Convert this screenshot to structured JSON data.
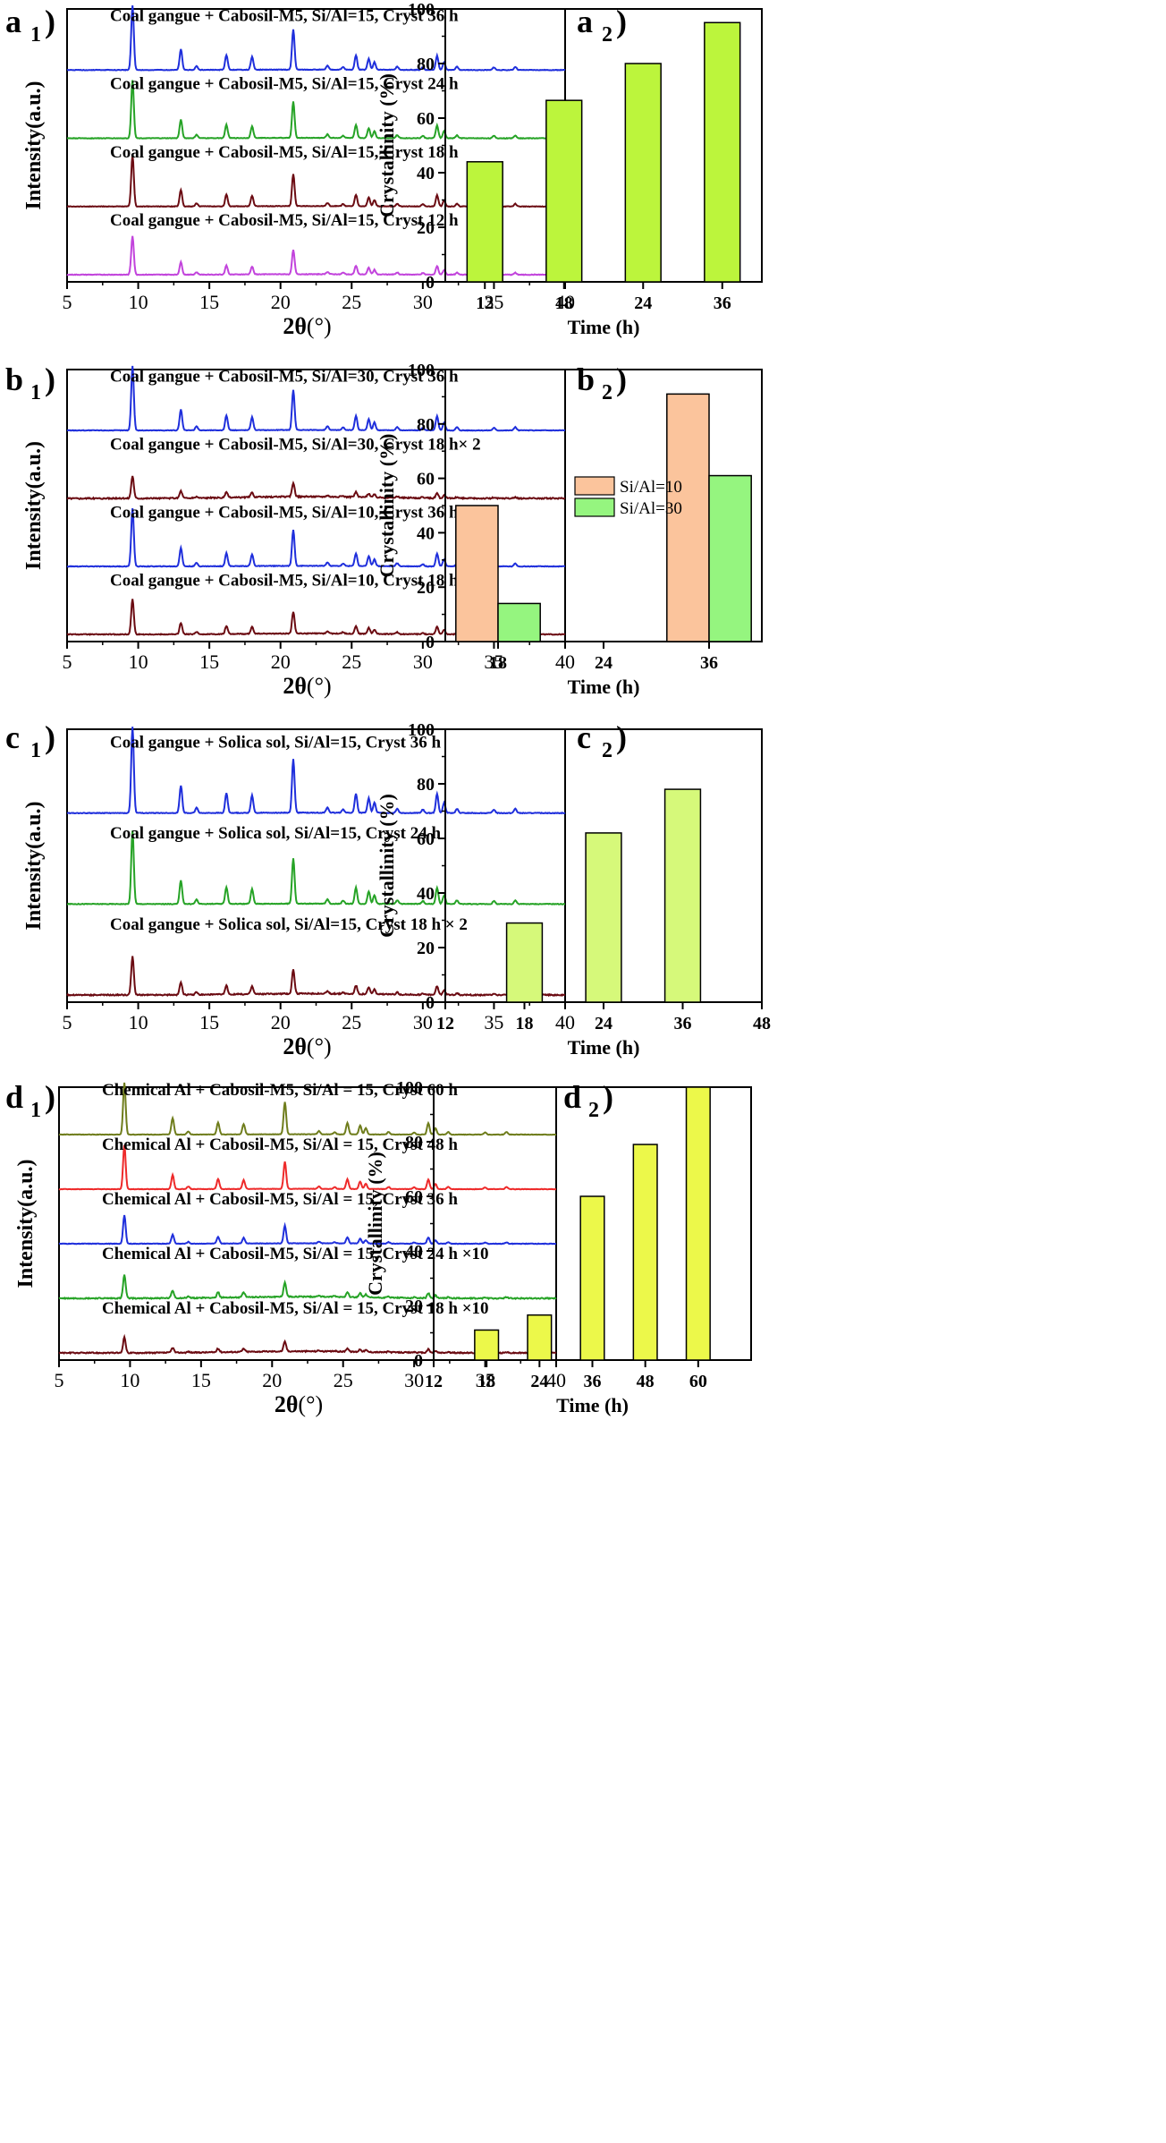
{
  "chart_data": [
    {
      "panel": "a1",
      "type": "line",
      "panel_label": "a",
      "panel_sub": "1",
      "xlabel_main": "2θ",
      "xlabel_unit": "(°)",
      "ylabel": "Intensity(a.u.)",
      "xlim": [
        5,
        40
      ],
      "xticks": [
        5,
        10,
        15,
        20,
        25,
        30,
        35,
        40
      ],
      "series": [
        {
          "name": "Coal gangue + Cabosil-M5, Si/Al=15, Cryst 36 h",
          "color": "#1f2fdc",
          "scale": 1.0,
          "noise": 0.15
        },
        {
          "name": "Coal gangue + Cabosil-M5, Si/Al=15, Cryst 24 h",
          "color": "#26a326",
          "scale": 0.9,
          "noise": 0.15
        },
        {
          "name": "Coal gangue + Cabosil-M5, Si/Al=15, Cryst 18 h",
          "color": "#6b0b12",
          "scale": 0.8,
          "noise": 0.15
        },
        {
          "name": "Coal gangue + Cabosil-M5, Si/Al=15, Cryst 12 h",
          "color": "#c244dc",
          "scale": 0.6,
          "noise": 0.2
        }
      ]
    },
    {
      "panel": "a2",
      "type": "bar",
      "panel_label": "a",
      "panel_sub": "2",
      "xlabel": "Time (h)",
      "ylabel": "Crystallinity (%)",
      "ylim": [
        0,
        100
      ],
      "yticks": [
        0,
        20,
        40,
        60,
        80,
        100
      ],
      "categories": [
        "12",
        "18",
        "24",
        "36"
      ],
      "series": [
        {
          "values": [
            44,
            66.5,
            80,
            95
          ],
          "color": "#bcf53c"
        }
      ]
    },
    {
      "panel": "b1",
      "type": "line",
      "panel_label": "b",
      "panel_sub": "1",
      "xlabel_main": "2θ",
      "xlabel_unit": "(°)",
      "ylabel": "Intensity(a.u.)",
      "xlim": [
        5,
        40
      ],
      "xticks": [
        5,
        10,
        15,
        20,
        25,
        30,
        35,
        40
      ],
      "series": [
        {
          "name": "Coal gangue + Cabosil-M5, Si/Al=30, Cryst 36 h",
          "color": "#1f2fdc",
          "scale": 1.0,
          "noise": 0.15
        },
        {
          "name": "Coal gangue + Cabosil-M5, Si/Al=30, Cryst 18 h× 2",
          "color": "#6b0b12",
          "scale": 0.35,
          "noise": 0.7
        },
        {
          "name": "Coal gangue + Cabosil-M5, Si/Al=10, Cryst 36 h",
          "color": "#1f2fdc",
          "scale": 0.9,
          "noise": 0.2
        },
        {
          "name": "Coal gangue + Cabosil-M5, Si/Al=10, Cryst 18 h",
          "color": "#6b0b12",
          "scale": 0.55,
          "noise": 0.35
        }
      ]
    },
    {
      "panel": "b2",
      "type": "bar",
      "panel_label": "b",
      "panel_sub": "2",
      "xlabel": "Time (h)",
      "ylabel": "Crystallinity (%)",
      "ylim": [
        0,
        100
      ],
      "yticks": [
        0,
        20,
        40,
        60,
        80,
        100
      ],
      "categories": [
        "18",
        "24",
        "36"
      ],
      "legend_position": "center",
      "series": [
        {
          "name": "Si/Al=10",
          "values": [
            50,
            null,
            91
          ],
          "color": "#fbc49c"
        },
        {
          "name": "Si/Al=30",
          "values": [
            14,
            null,
            61
          ],
          "color": "#95f57f"
        }
      ]
    },
    {
      "panel": "c1",
      "type": "line",
      "panel_label": "c",
      "panel_sub": "1",
      "xlabel_main": "2θ",
      "xlabel_unit": "(°)",
      "ylabel": "Intensity(a.u.)",
      "xlim": [
        5,
        40
      ],
      "xticks": [
        5,
        10,
        15,
        20,
        25,
        30,
        35,
        40
      ],
      "series": [
        {
          "name": "Coal gangue + Solica sol, Si/Al=15, Cryst 36 h",
          "color": "#1f2fdc",
          "scale": 1.0,
          "noise": 0.1
        },
        {
          "name": "Coal gangue + Solica sol, Si/Al=15, Cryst 24 h",
          "color": "#26a326",
          "scale": 0.85,
          "noise": 0.1
        },
        {
          "name": "Coal gangue + Solica sol, Si/Al=15, Cryst 18 h × 2",
          "color": "#6b0b12",
          "scale": 0.45,
          "noise": 0.4
        }
      ]
    },
    {
      "panel": "c2",
      "type": "bar",
      "panel_label": "c",
      "panel_sub": "2",
      "xlabel": "Time (h)",
      "ylabel": "Crystallinity (%)",
      "ylim": [
        0,
        100
      ],
      "yticks": [
        0,
        20,
        40,
        60,
        80,
        100
      ],
      "xlim": [
        12,
        48
      ],
      "xticks": [
        "12",
        "18",
        "24",
        "36",
        "48"
      ],
      "categories": [
        "18",
        "24",
        "36"
      ],
      "series": [
        {
          "values": [
            29,
            62,
            78
          ],
          "color": "#d6f97a"
        }
      ]
    },
    {
      "panel": "d1",
      "type": "line",
      "panel_label": "d",
      "panel_sub": "1",
      "xlabel_main": "2θ",
      "xlabel_unit": "(°)",
      "ylabel": "Intensity(a.u.)",
      "xlim": [
        5,
        40
      ],
      "xticks": [
        5,
        10,
        15,
        20,
        25,
        30,
        35,
        40
      ],
      "series": [
        {
          "name": "Chemical Al + Cabosil-M5, Si/Al = 15, Cryst 60 h",
          "color": "#6f7d1c",
          "scale": 1.0,
          "noise": 0.15
        },
        {
          "name": "Chemical Al + Cabosil-M5, Si/Al = 15, Cryst 48 h",
          "color": "#ee2a2a",
          "scale": 0.85,
          "noise": 0.15
        },
        {
          "name": "Chemical Al + Cabosil-M5, Si/Al = 15, Cryst 36 h",
          "color": "#1f2fdc",
          "scale": 0.55,
          "noise": 0.2
        },
        {
          "name": "Chemical Al + Cabosil-M5, Si/Al = 15, Cryst 24 h ×10",
          "color": "#26a326",
          "scale": 0.45,
          "noise": 0.8
        },
        {
          "name": "Chemical Al + Cabosil-M5, Si/Al = 15, Cryst 18 h ×10",
          "color": "#6b0b12",
          "scale": 0.3,
          "noise": 0.8
        }
      ]
    },
    {
      "panel": "d2",
      "type": "bar",
      "panel_label": "d",
      "panel_sub": "2",
      "xlabel": "Time (h)",
      "ylabel": "Crystallinity (%)",
      "ylim": [
        0,
        100
      ],
      "yticks": [
        0,
        20,
        40,
        60,
        80,
        100
      ],
      "xticks": [
        "12",
        "18",
        "24",
        "36",
        "48",
        "60"
      ],
      "categories": [
        "18",
        "24",
        "36",
        "48",
        "60"
      ],
      "series": [
        {
          "values": [
            11,
            16.5,
            60,
            79,
            100
          ],
          "color": "#ecf84a"
        }
      ]
    }
  ]
}
